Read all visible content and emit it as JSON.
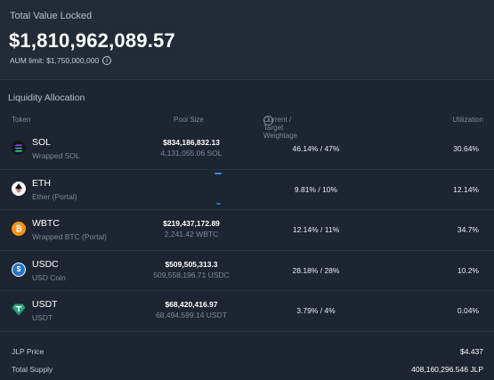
{
  "tvl": {
    "label": "Total Value Locked",
    "value": "$1,810,962,089.57",
    "aum_limit": "AUM limit: $1,750,000,000"
  },
  "allocation": {
    "title": "Liquidity Allocation",
    "headers": {
      "token": "Token",
      "pool_size": "Pool Size",
      "weightage": "Current / Target Weightage",
      "utilization": "Utilization"
    },
    "rows": [
      {
        "symbol": "SOL",
        "name": "Wrapped SOL",
        "pool_usd": "$834,186,832.13",
        "pool_amount": "4,131,055.06 SOL",
        "weightage": "46.14% / 47%",
        "utilization": "30.64%",
        "icon": "sol-icon",
        "icon_color": "#14161b"
      },
      {
        "symbol": "ETH",
        "name": "Ether (Portal)",
        "pool_usd": "",
        "pool_amount": "",
        "weightage": "9.81% / 10%",
        "utilization": "12.14%",
        "icon": "eth-icon",
        "icon_color": "#ffffff"
      },
      {
        "symbol": "WBTC",
        "name": "Wrapped BTC (Portal)",
        "pool_usd": "$219,437,172.89",
        "pool_amount": "2,241.42 WBTC",
        "weightage": "12.14% / 11%",
        "utilization": "34.7%",
        "icon": "btc-icon",
        "icon_color": "#f7931a"
      },
      {
        "symbol": "USDC",
        "name": "USD Coin",
        "pool_usd": "$509,505,313.3",
        "pool_amount": "509,558,196.71 USDC",
        "weightage": "28.18% / 28%",
        "utilization": "10.2%",
        "icon": "usdc-icon",
        "icon_color": "#2775ca"
      },
      {
        "symbol": "USDT",
        "name": "USDT",
        "pool_usd": "$68,420,416.97",
        "pool_amount": "68,494,599.14 USDT",
        "weightage": "3.79% / 4%",
        "utilization": "0.04%",
        "icon": "usdt-icon",
        "icon_color": "#26a17b"
      }
    ]
  },
  "footer": {
    "jlp_price_label": "JLP Price",
    "jlp_price_value": "$4.437",
    "total_supply_label": "Total Supply",
    "total_supply_value": "408,160,296.546 JLP"
  },
  "colors": {
    "background": "#1c2530",
    "card": "#222b36",
    "muted_text": "#7f8a97",
    "loading_accent": "#3d8be0"
  }
}
